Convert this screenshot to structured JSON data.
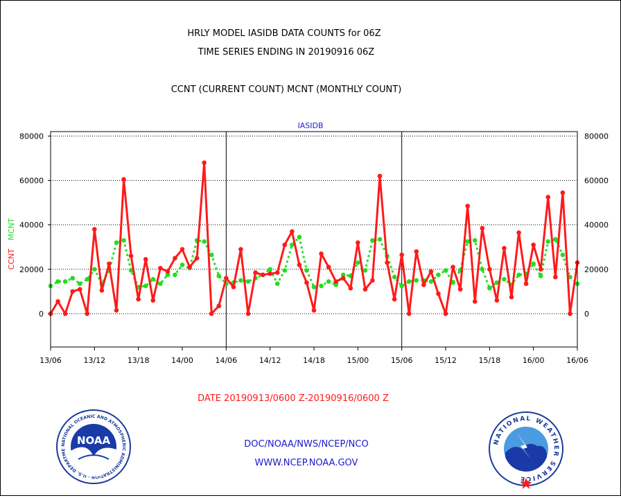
{
  "header": {
    "title_line1": "HRLY MODEL IASIDB DATA COUNTS for 06Z",
    "title_line2": "TIME SERIES ENDING IN 20190916 06Z",
    "subtitle": "CCNT (CURRENT COUNT) MCNT (MONTHLY COUNT)"
  },
  "footer": {
    "date_range": "DATE 20190913/0600 Z-20190916/0600 Z",
    "org": "DOC/NOAA/NWS/NCEP/NCO",
    "url": "WWW.NCEP.NOAA.GOV"
  },
  "logos": {
    "noaa_text": "NOAA",
    "noaa_ring_text": "NATIONAL OCEANIC AND ATMOSPHERIC ADMINISTRATION · U.S. DEPARTMENT OF COMMERCE",
    "nws_ring_text": "NATIONAL WEATHER SERVICE"
  },
  "colors": {
    "ccnt": "#ff1a1a",
    "mcnt": "#22dd22",
    "title": "#000000",
    "panel_title": "#1a1acc",
    "footer_red": "#ff1a1a",
    "footer_blue": "#1a1acc"
  },
  "chart_data": {
    "type": "line",
    "panel_title": "IASIDB",
    "ylabel_ccnt": "CCNT",
    "ylabel_mcnt": "MCNT",
    "ylim": [
      -15000,
      82000
    ],
    "y_ticks": [
      0,
      20000,
      40000,
      60000,
      80000
    ],
    "y_tick_labels": [
      "0",
      "20000",
      "40000",
      "60000",
      "80000"
    ],
    "x_ticks": [
      0,
      6,
      12,
      18,
      24,
      30,
      36,
      42,
      48,
      54,
      60,
      66,
      72
    ],
    "x_tick_labels": [
      "13/06",
      "13/12",
      "13/18",
      "14/00",
      "14/06",
      "14/12",
      "14/18",
      "15/00",
      "15/06",
      "15/12",
      "15/18",
      "16/00",
      "16/06"
    ],
    "day_dividers": [
      24,
      48
    ],
    "grid": "horizontal dotted",
    "series": [
      {
        "name": "CCNT",
        "values": [
          0,
          5500,
          0,
          10000,
          11000,
          0,
          38000,
          10500,
          22500,
          1500,
          60500,
          26000,
          6500,
          24500,
          6000,
          20500,
          19000,
          25000,
          29000,
          21000,
          25000,
          68000,
          0,
          3500,
          16000,
          12000,
          29000,
          0,
          18500,
          17500,
          18000,
          18500,
          31000,
          37000,
          22000,
          14000,
          1500,
          27000,
          21000,
          14500,
          16000,
          11500,
          32000,
          11000,
          15000,
          62000,
          23000,
          6500,
          26500,
          0,
          28000,
          13000,
          19000,
          9000,
          0,
          21000,
          11000,
          48500,
          5500,
          38500,
          20000,
          6000,
          29500,
          7500,
          36500,
          13500,
          31000,
          20000,
          52500,
          16500,
          54500,
          0,
          23000
        ]
      },
      {
        "name": "MCNT",
        "values": [
          12500,
          14500,
          14500,
          16000,
          13500,
          15500,
          20000,
          13500,
          19500,
          32000,
          33000,
          19500,
          12000,
          12500,
          15500,
          13500,
          17500,
          17500,
          22000,
          20500,
          33000,
          32500,
          26500,
          17000,
          13500,
          14000,
          15000,
          14500,
          16000,
          17500,
          20000,
          13500,
          19500,
          31000,
          34500,
          19500,
          12000,
          12500,
          14500,
          13000,
          17500,
          17000,
          23000,
          19500,
          33000,
          33500,
          26000,
          16500,
          12500,
          14500,
          15000,
          15000,
          14500,
          17500,
          19500,
          14000,
          19500,
          32500,
          33000,
          20000,
          11500,
          14000,
          15500,
          13000,
          17500,
          18000,
          22500,
          17000,
          32500,
          33500,
          26500,
          16500,
          13500
        ]
      }
    ]
  }
}
